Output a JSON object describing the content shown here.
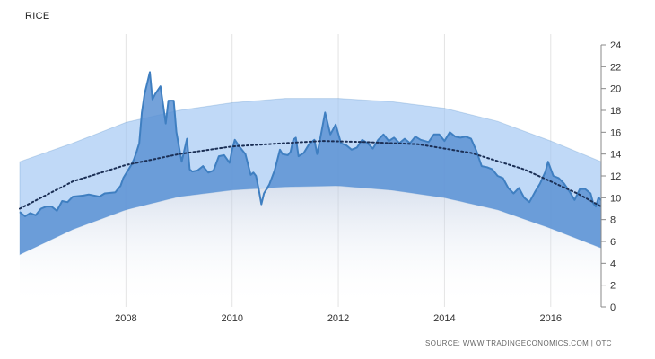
{
  "header": {
    "title": "RICE"
  },
  "footer": {
    "source": "SOURCE: WWW.TRADINGECONOMICS.COM | OTC"
  },
  "chart_data": {
    "type": "area",
    "title": "RICE",
    "xlabel": "",
    "ylabel": "",
    "ylim": [
      0,
      24
    ],
    "xlim": [
      2006.0,
      2016.95
    ],
    "y_ticks": [
      0,
      2,
      4,
      6,
      8,
      10,
      12,
      14,
      16,
      18,
      20,
      22,
      24
    ],
    "x_ticks": [
      2008,
      2010,
      2012,
      2014,
      2016
    ],
    "y_axis_position": "right",
    "grid": "vertical",
    "colors": {
      "line": "#3f7fc1",
      "fill": "#5c92d3",
      "band": "#9ec5f3",
      "trend": "#1b2f55",
      "grid": "#e3e3e3"
    },
    "series": [
      {
        "values": [
          [
            2006.0,
            8.7
          ],
          [
            2006.1,
            8.3
          ],
          [
            2006.2,
            8.6
          ],
          [
            2006.3,
            8.4
          ],
          [
            2006.4,
            9.0
          ],
          [
            2006.5,
            9.2
          ],
          [
            2006.6,
            9.2
          ],
          [
            2006.7,
            8.8
          ],
          [
            2006.8,
            9.7
          ],
          [
            2006.9,
            9.6
          ],
          [
            2007.0,
            10.1
          ],
          [
            2007.2,
            10.2
          ],
          [
            2007.3,
            10.3
          ],
          [
            2007.5,
            10.1
          ],
          [
            2007.6,
            10.4
          ],
          [
            2007.8,
            10.5
          ],
          [
            2007.9,
            11.1
          ],
          [
            2007.95,
            11.8
          ],
          [
            2008.1,
            13.0
          ],
          [
            2008.15,
            13.5
          ],
          [
            2008.2,
            14.2
          ],
          [
            2008.25,
            15.0
          ],
          [
            2008.3,
            17.8
          ],
          [
            2008.35,
            19.5
          ],
          [
            2008.45,
            21.5
          ],
          [
            2008.5,
            19.0
          ],
          [
            2008.55,
            19.5
          ],
          [
            2008.65,
            20.2
          ],
          [
            2008.7,
            18.5
          ],
          [
            2008.75,
            16.8
          ],
          [
            2008.8,
            18.9
          ],
          [
            2008.9,
            18.9
          ],
          [
            2008.95,
            16.0
          ],
          [
            2009.05,
            13.3
          ],
          [
            2009.15,
            15.4
          ],
          [
            2009.2,
            12.6
          ],
          [
            2009.25,
            12.4
          ],
          [
            2009.35,
            12.5
          ],
          [
            2009.45,
            12.9
          ],
          [
            2009.55,
            12.3
          ],
          [
            2009.65,
            12.5
          ],
          [
            2009.75,
            13.8
          ],
          [
            2009.85,
            13.9
          ],
          [
            2009.95,
            13.2
          ],
          [
            2010.0,
            14.4
          ],
          [
            2010.05,
            15.3
          ],
          [
            2010.15,
            14.6
          ],
          [
            2010.25,
            14.0
          ],
          [
            2010.35,
            12.1
          ],
          [
            2010.4,
            12.3
          ],
          [
            2010.45,
            12.0
          ],
          [
            2010.5,
            10.8
          ],
          [
            2010.55,
            9.4
          ],
          [
            2010.6,
            10.4
          ],
          [
            2010.7,
            11.2
          ],
          [
            2010.8,
            12.5
          ],
          [
            2010.9,
            14.4
          ],
          [
            2010.95,
            14.0
          ],
          [
            2011.05,
            13.9
          ],
          [
            2011.1,
            14.2
          ],
          [
            2011.15,
            15.3
          ],
          [
            2011.2,
            15.5
          ],
          [
            2011.25,
            13.8
          ],
          [
            2011.35,
            14.1
          ],
          [
            2011.45,
            14.9
          ],
          [
            2011.55,
            15.3
          ],
          [
            2011.6,
            14.0
          ],
          [
            2011.65,
            15.2
          ],
          [
            2011.75,
            17.8
          ],
          [
            2011.85,
            15.8
          ],
          [
            2011.95,
            16.7
          ],
          [
            2012.05,
            15.0
          ],
          [
            2012.15,
            14.8
          ],
          [
            2012.25,
            14.4
          ],
          [
            2012.35,
            14.6
          ],
          [
            2012.45,
            15.3
          ],
          [
            2012.55,
            15.0
          ],
          [
            2012.65,
            14.5
          ],
          [
            2012.75,
            15.3
          ],
          [
            2012.85,
            15.8
          ],
          [
            2012.95,
            15.2
          ],
          [
            2013.05,
            15.5
          ],
          [
            2013.15,
            15.0
          ],
          [
            2013.25,
            15.4
          ],
          [
            2013.35,
            15.0
          ],
          [
            2013.45,
            15.6
          ],
          [
            2013.55,
            15.3
          ],
          [
            2013.7,
            15.1
          ],
          [
            2013.8,
            15.8
          ],
          [
            2013.9,
            15.8
          ],
          [
            2014.0,
            15.2
          ],
          [
            2014.1,
            16.0
          ],
          [
            2014.2,
            15.6
          ],
          [
            2014.3,
            15.5
          ],
          [
            2014.4,
            15.6
          ],
          [
            2014.5,
            15.4
          ],
          [
            2014.6,
            14.3
          ],
          [
            2014.7,
            12.9
          ],
          [
            2014.8,
            12.8
          ],
          [
            2014.9,
            12.6
          ],
          [
            2015.0,
            12.0
          ],
          [
            2015.1,
            11.8
          ],
          [
            2015.2,
            10.9
          ],
          [
            2015.3,
            10.4
          ],
          [
            2015.4,
            10.9
          ],
          [
            2015.5,
            10.0
          ],
          [
            2015.6,
            9.6
          ],
          [
            2015.7,
            10.5
          ],
          [
            2015.8,
            11.3
          ],
          [
            2015.9,
            12.4
          ],
          [
            2015.95,
            13.3
          ],
          [
            2016.05,
            12.0
          ],
          [
            2016.15,
            11.8
          ],
          [
            2016.25,
            11.3
          ],
          [
            2016.35,
            10.6
          ],
          [
            2016.45,
            9.8
          ],
          [
            2016.55,
            10.8
          ],
          [
            2016.65,
            10.8
          ],
          [
            2016.75,
            10.4
          ],
          [
            2016.8,
            9.5
          ],
          [
            2016.85,
            9.2
          ],
          [
            2016.9,
            10.0
          ],
          [
            2016.95,
            9.8
          ]
        ]
      }
    ],
    "trend": {
      "style": "dotted",
      "points": [
        [
          2006.0,
          9.0
        ],
        [
          2007.0,
          11.5
        ],
        [
          2008.0,
          13.0
        ],
        [
          2009.0,
          14.0
        ],
        [
          2010.0,
          14.7
        ],
        [
          2011.0,
          15.0
        ],
        [
          2011.7,
          15.2
        ],
        [
          2012.5,
          15.1
        ],
        [
          2013.5,
          14.9
        ],
        [
          2014.5,
          14.1
        ],
        [
          2015.5,
          12.6
        ],
        [
          2016.5,
          10.4
        ],
        [
          2016.95,
          9.2
        ]
      ]
    },
    "band": {
      "upper": [
        [
          2006.0,
          13.3
        ],
        [
          2007.0,
          15.0
        ],
        [
          2008.0,
          16.9
        ],
        [
          2009.0,
          18.0
        ],
        [
          2010.0,
          18.7
        ],
        [
          2011.0,
          19.1
        ],
        [
          2012.0,
          19.1
        ],
        [
          2013.0,
          18.8
        ],
        [
          2014.0,
          18.2
        ],
        [
          2015.0,
          17.0
        ],
        [
          2016.0,
          15.2
        ],
        [
          2016.95,
          13.3
        ]
      ],
      "lower": [
        [
          2006.0,
          4.8
        ],
        [
          2007.0,
          7.1
        ],
        [
          2008.0,
          8.9
        ],
        [
          2009.0,
          10.1
        ],
        [
          2010.0,
          10.7
        ],
        [
          2011.0,
          11.0
        ],
        [
          2012.0,
          11.1
        ],
        [
          2013.0,
          10.7
        ],
        [
          2014.0,
          10.0
        ],
        [
          2015.0,
          8.9
        ],
        [
          2016.0,
          7.2
        ],
        [
          2016.95,
          5.4
        ]
      ]
    }
  }
}
